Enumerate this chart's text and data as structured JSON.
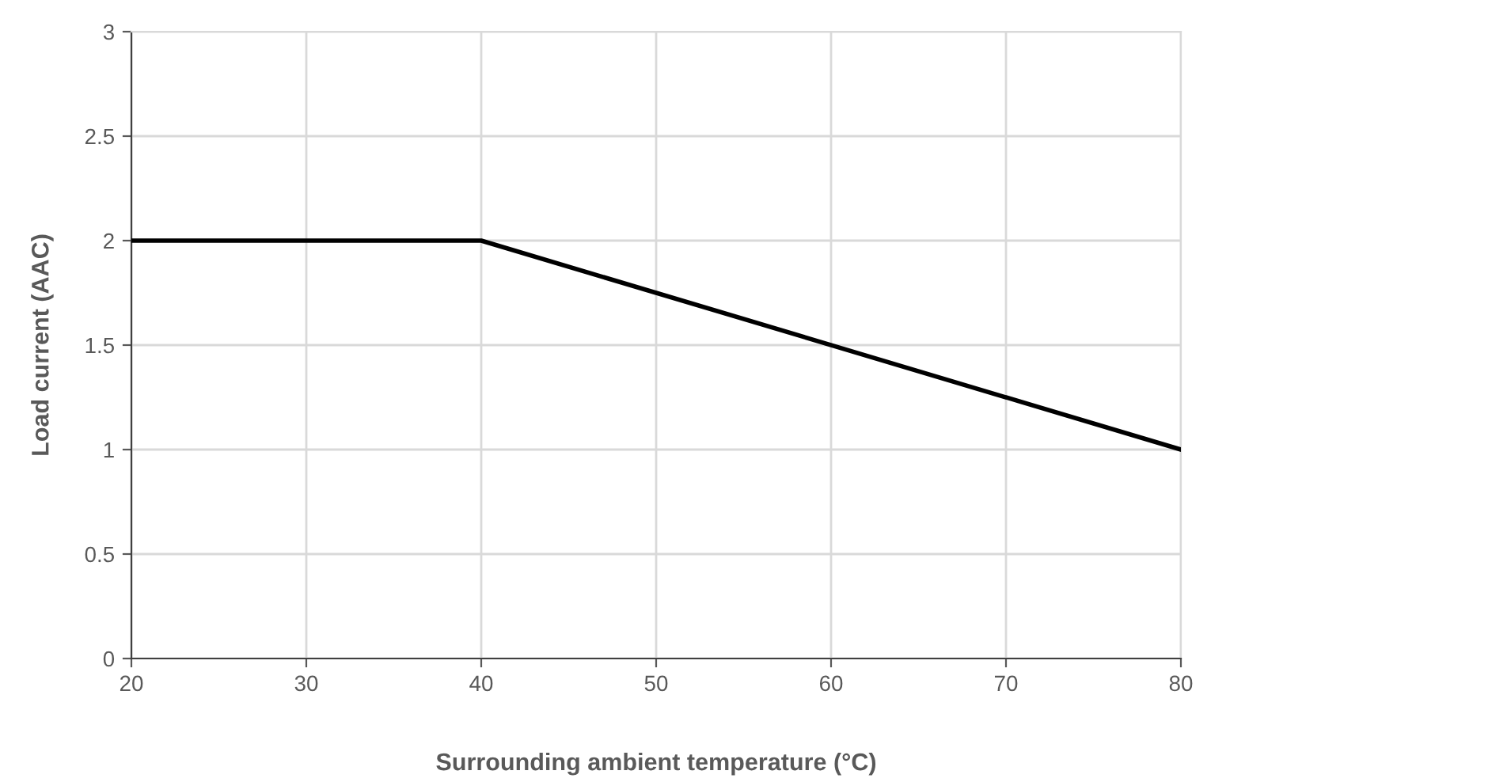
{
  "chart_data": {
    "type": "line",
    "xlabel": "Surrounding ambient temperature (°C)",
    "ylabel": "Load current (AAC)",
    "x": [
      20,
      40,
      80
    ],
    "series": [
      {
        "color": "#000000",
        "values": [
          2,
          2,
          1
        ]
      }
    ],
    "xlim": [
      20,
      80
    ],
    "xticks": [
      20,
      30,
      40,
      50,
      60,
      70,
      80
    ],
    "ylim": [
      0,
      3
    ],
    "yticks": [
      0,
      0.5,
      1,
      1.5,
      2,
      2.5,
      3
    ],
    "grid": true,
    "marker": "none",
    "line_style": "solid"
  }
}
